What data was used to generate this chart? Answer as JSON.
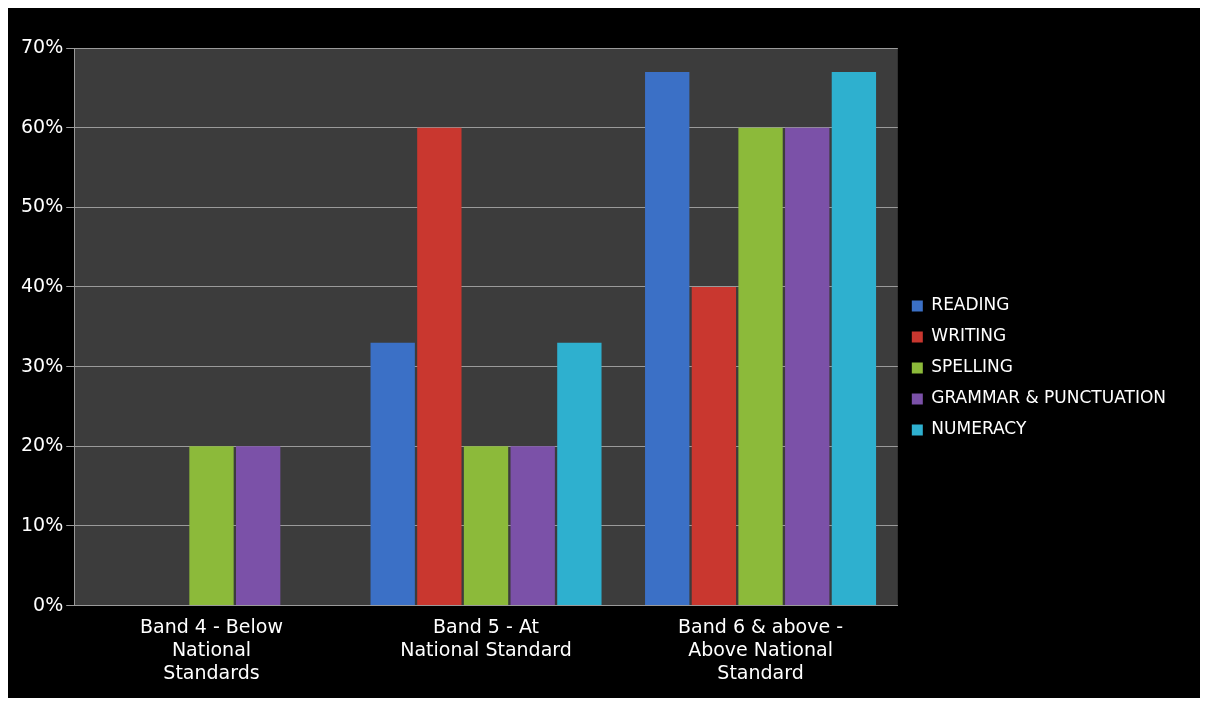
{
  "chart_data": {
    "type": "bar",
    "categories": [
      "Band 4 - Below National Standards",
      "Band 5 - At National Standard",
      "Band 6 & above - Above National Standard"
    ],
    "series": [
      {
        "name": "READING",
        "color": "#3b70c6",
        "values": [
          0,
          33,
          67
        ]
      },
      {
        "name": "WRITING",
        "color": "#c9372f",
        "values": [
          0,
          60,
          40
        ]
      },
      {
        "name": "SPELLING",
        "color": "#8cba3a",
        "values": [
          20,
          20,
          60
        ]
      },
      {
        "name": "GRAMMAR & PUNCTUATION",
        "color": "#7b51a8",
        "values": [
          20,
          20,
          60
        ]
      },
      {
        "name": "NUMERACY",
        "color": "#2eb0cf",
        "values": [
          0,
          33,
          67
        ]
      }
    ],
    "ylim": [
      0,
      70
    ],
    "yticks": [
      {
        "value": 0,
        "label": "0%"
      },
      {
        "value": 10,
        "label": "10%"
      },
      {
        "value": 20,
        "label": "20%"
      },
      {
        "value": 30,
        "label": "30%"
      },
      {
        "value": 40,
        "label": "40%"
      },
      {
        "value": 50,
        "label": "50%"
      },
      {
        "value": 60,
        "label": "60%"
      },
      {
        "value": 70,
        "label": "70%"
      }
    ],
    "grid": "y",
    "legend": "right"
  }
}
